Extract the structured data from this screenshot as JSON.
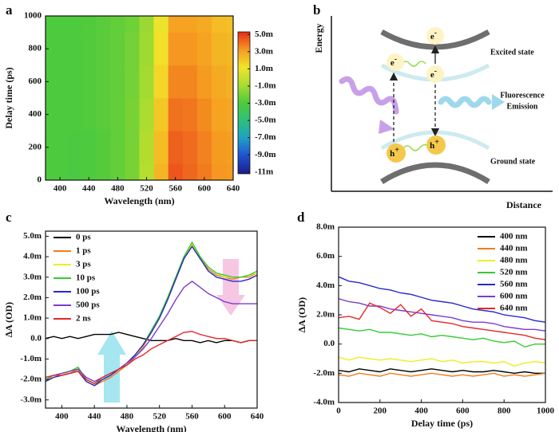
{
  "chart_data": [
    {
      "type": "heatmap",
      "panel_label": "a",
      "x_label": "Wavelength (nm)",
      "y_label": "Delay time (ps)",
      "x": [
        380,
        400,
        420,
        440,
        460,
        480,
        500,
        520,
        540,
        560,
        580,
        600,
        620,
        640
      ],
      "y": [
        0,
        200,
        400,
        600,
        800,
        1000
      ],
      "z": [
        [
          -3,
          -3,
          -3.2,
          -3,
          -2.8,
          -2.5,
          -2,
          -0.5,
          2.5,
          4.5,
          4.2,
          3.8,
          3.3,
          3.2
        ],
        [
          -3,
          -3,
          -3.1,
          -3,
          -2.8,
          -2.5,
          -2,
          -0.6,
          2.3,
          4.3,
          4.1,
          3.7,
          3.2,
          3.1
        ],
        [
          -3,
          -3,
          -3,
          -2.9,
          -2.7,
          -2.5,
          -2,
          -0.8,
          2.0,
          4.0,
          3.9,
          3.5,
          3.0,
          2.9
        ],
        [
          -3,
          -3,
          -3,
          -2.9,
          -2.7,
          -2.5,
          -2.1,
          -1.0,
          1.6,
          3.6,
          3.6,
          3.2,
          2.8,
          2.6
        ],
        [
          -3,
          -3,
          -3,
          -2.9,
          -2.7,
          -2.5,
          -2.1,
          -1.1,
          1.3,
          3.3,
          3.3,
          3.0,
          2.5,
          2.4
        ],
        [
          -3,
          -3,
          -3,
          -2.9,
          -2.7,
          -2.5,
          -2.2,
          -1.2,
          1.0,
          3.0,
          3.0,
          2.8,
          2.3,
          2.2
        ]
      ],
      "xlim": [
        380,
        640
      ],
      "xticks": [
        400,
        440,
        480,
        520,
        560,
        600,
        640
      ],
      "ylim": [
        0,
        1000
      ],
      "yticks": [
        0,
        200,
        400,
        600,
        800,
        1000
      ],
      "zlim": [
        -11.2,
        5.3
      ],
      "zticks": [
        {
          "value": 5,
          "label": "5.0m"
        },
        {
          "value": 3,
          "label": "3.0m"
        },
        {
          "value": 1,
          "label": "1.0m"
        },
        {
          "value": -1,
          "label": "-1.0m"
        },
        {
          "value": -3,
          "label": "-3.0m"
        },
        {
          "value": -5,
          "label": "-5.0m"
        },
        {
          "value": -7,
          "label": "-7.0m"
        },
        {
          "value": -9,
          "label": "-9.0m"
        },
        {
          "value": -11,
          "label": "-11m"
        }
      ],
      "colors": [
        "#1c1c8a",
        "#2050d0",
        "#1fa0c8",
        "#2ec07a",
        "#4fca3c",
        "#a8dc30",
        "#f2e52a",
        "#f59a20",
        "#e82a1a"
      ]
    },
    {
      "type": "line",
      "panel_label": "c",
      "x_label": "Wavelength (nm)",
      "y_label": "∆A (OD)",
      "legend": "upper left",
      "x": [
        380,
        390,
        400,
        410,
        420,
        430,
        440,
        450,
        460,
        470,
        480,
        490,
        500,
        510,
        520,
        530,
        540,
        550,
        560,
        570,
        580,
        590,
        600,
        610,
        620,
        630,
        640
      ],
      "series": [
        {
          "name": "0 ps",
          "color": "#000000",
          "values": [
            0.0,
            0.1,
            0.0,
            0.1,
            0.0,
            0.1,
            0.2,
            0.2,
            0.2,
            0.3,
            0.2,
            0.1,
            0.0,
            -0.1,
            -0.1,
            -0.1,
            0.0,
            -0.1,
            -0.1,
            -0.2,
            -0.1,
            -0.2,
            -0.1,
            -0.1,
            -0.2,
            -0.1,
            -0.1
          ]
        },
        {
          "name": "1 ps",
          "color": "#f07d1a",
          "values": [
            -2.0,
            -1.9,
            -1.8,
            -1.7,
            -1.5,
            -2.1,
            -2.3,
            -2.1,
            -1.9,
            -1.6,
            -1.3,
            -0.9,
            -0.4,
            0.3,
            1.0,
            1.9,
            2.9,
            3.9,
            4.6,
            3.9,
            3.4,
            3.1,
            3.0,
            2.9,
            3.0,
            3.0,
            3.2
          ]
        },
        {
          "name": "3 ps",
          "color": "#eeee22",
          "values": [
            -2.1,
            -1.9,
            -1.8,
            -1.6,
            -1.5,
            -2.0,
            -2.2,
            -2.0,
            -1.8,
            -1.5,
            -1.2,
            -0.9,
            -0.3,
            0.3,
            1.1,
            2.0,
            3.0,
            4.0,
            4.6,
            4.0,
            3.5,
            3.2,
            3.0,
            3.0,
            3.0,
            3.1,
            3.2
          ]
        },
        {
          "name": "10 ps",
          "color": "#33cc33",
          "values": [
            -2.0,
            -1.8,
            -1.7,
            -1.6,
            -1.4,
            -2.0,
            -2.2,
            -2.0,
            -1.8,
            -1.5,
            -1.2,
            -0.8,
            -0.3,
            0.4,
            1.1,
            2.0,
            3.0,
            4.0,
            4.7,
            4.0,
            3.5,
            3.2,
            3.1,
            3.0,
            3.0,
            3.1,
            3.3
          ]
        },
        {
          "name": "100 ps",
          "color": "#2828c8",
          "values": [
            -2.1,
            -1.9,
            -1.8,
            -1.7,
            -1.6,
            -2.1,
            -2.3,
            -2.0,
            -1.8,
            -1.5,
            -1.2,
            -0.8,
            -0.3,
            0.3,
            1.0,
            1.9,
            2.9,
            3.9,
            4.5,
            3.9,
            3.3,
            3.0,
            2.9,
            2.8,
            2.8,
            2.9,
            3.1
          ]
        },
        {
          "name": "500 ps",
          "color": "#7a3ccf",
          "values": [
            -1.9,
            -1.8,
            -1.7,
            -1.6,
            -1.5,
            -1.9,
            -2.1,
            -1.9,
            -1.7,
            -1.5,
            -1.2,
            -0.9,
            -0.5,
            0.0,
            0.6,
            1.2,
            1.9,
            2.5,
            2.8,
            2.5,
            2.2,
            2.0,
            1.8,
            1.7,
            1.7,
            1.7,
            1.7
          ]
        },
        {
          "name": "2 ns",
          "color": "#e6262a",
          "values": [
            -1.9,
            -1.8,
            -1.8,
            -1.7,
            -1.6,
            -2.0,
            -2.2,
            -1.9,
            -1.7,
            -1.5,
            -1.3,
            -1.0,
            -0.8,
            -0.5,
            -0.3,
            -0.1,
            0.1,
            0.3,
            0.35,
            0.2,
            0.1,
            0.0,
            0.0,
            -0.1,
            -0.2,
            -0.1,
            -0.1
          ]
        }
      ],
      "xlim": [
        380,
        640
      ],
      "xticks": [
        400,
        440,
        480,
        520,
        560,
        600,
        640
      ],
      "ylim": [
        -3.4,
        5.25
      ],
      "yticks": [
        {
          "value": 5,
          "label": "5.0m"
        },
        {
          "value": 4,
          "label": "4.0m"
        },
        {
          "value": 3,
          "label": "3.0m"
        },
        {
          "value": 2,
          "label": "2.0m"
        },
        {
          "value": 1,
          "label": "1.0m"
        },
        {
          "value": 0,
          "label": "0.0"
        },
        {
          "value": -1,
          "label": "-1.0m"
        },
        {
          "value": -2,
          "label": "-2.0m"
        },
        {
          "value": -3,
          "label": "-3.0m"
        }
      ]
    },
    {
      "type": "line",
      "panel_label": "d",
      "x_label": "Delay time (ps)",
      "y_label": "∆A (OD)",
      "legend": "upper right",
      "x": [
        0,
        50,
        100,
        150,
        200,
        250,
        300,
        350,
        400,
        450,
        500,
        550,
        600,
        650,
        700,
        750,
        800,
        850,
        900,
        950,
        1000
      ],
      "series": [
        {
          "name": "400 nm",
          "color": "#000000",
          "values": [
            -1.8,
            -1.9,
            -1.7,
            -1.8,
            -1.9,
            -1.7,
            -1.8,
            -1.9,
            -1.8,
            -1.7,
            -1.8,
            -1.9,
            -1.8,
            -1.9,
            -1.9,
            -1.8,
            -1.9,
            -2.0,
            -1.9,
            -2.0,
            -2.0
          ]
        },
        {
          "name": "440 nm",
          "color": "#f07d1a",
          "values": [
            -2.1,
            -2.2,
            -2.0,
            -2.1,
            -2.2,
            -2.0,
            -2.1,
            -2.2,
            -2.1,
            -2.0,
            -2.1,
            -2.2,
            -2.1,
            -2.2,
            -2.1,
            -2.0,
            -2.2,
            -2.1,
            -2.2,
            -2.1,
            -2.0
          ]
        },
        {
          "name": "480 nm",
          "color": "#eeee22",
          "values": [
            -0.9,
            -1.1,
            -0.9,
            -1.0,
            -1.1,
            -1.0,
            -1.1,
            -1.2,
            -1.1,
            -1.0,
            -1.2,
            -1.1,
            -1.3,
            -1.2,
            -1.2,
            -1.3,
            -1.2,
            -1.5,
            -1.3,
            -1.2,
            -1.3
          ]
        },
        {
          "name": "520 nm",
          "color": "#33cc33",
          "values": [
            1.1,
            1.0,
            0.9,
            1.0,
            0.8,
            0.8,
            0.7,
            0.6,
            0.7,
            0.5,
            0.6,
            0.5,
            0.4,
            0.3,
            0.4,
            0.2,
            0.1,
            0.2,
            -0.2,
            0.0,
            0.0
          ]
        },
        {
          "name": "560 nm",
          "color": "#2828c8",
          "values": [
            4.6,
            4.3,
            4.2,
            4.0,
            3.8,
            3.7,
            3.5,
            3.4,
            3.2,
            3.0,
            2.9,
            2.8,
            2.6,
            2.4,
            2.3,
            2.2,
            2.0,
            1.9,
            1.8,
            1.6,
            1.5
          ]
        },
        {
          "name": "600 nm",
          "color": "#7a3ccf",
          "values": [
            3.1,
            2.9,
            2.8,
            2.6,
            2.6,
            2.4,
            2.3,
            2.2,
            2.1,
            2.0,
            1.9,
            1.8,
            1.6,
            1.5,
            1.5,
            1.4,
            1.2,
            1.1,
            1.0,
            1.0,
            0.9
          ]
        },
        {
          "name": "640 nm",
          "color": "#e6262a",
          "values": [
            1.8,
            1.9,
            1.7,
            2.8,
            2.5,
            2.1,
            2.7,
            1.9,
            2.4,
            1.6,
            1.5,
            1.4,
            1.2,
            1.1,
            1.0,
            0.9,
            0.8,
            0.7,
            0.6,
            0.4,
            0.3
          ]
        }
      ],
      "xlim": [
        0,
        1000
      ],
      "xticks": [
        0,
        200,
        400,
        600,
        800,
        1000
      ],
      "ylim": [
        -4,
        8
      ],
      "yticks": [
        {
          "value": 8,
          "label": "8.0m"
        },
        {
          "value": 6,
          "label": "6.0m"
        },
        {
          "value": 4,
          "label": "4.0m"
        },
        {
          "value": 2,
          "label": "2.0m"
        },
        {
          "value": 0,
          "label": "0.0"
        },
        {
          "value": -2,
          "label": "-2.0m"
        },
        {
          "value": -4,
          "label": "-4.0m"
        }
      ]
    }
  ],
  "diagram": {
    "panel_label": "b",
    "y_axis": "Energy",
    "x_axis": "Distance",
    "states": [
      "Excited state",
      "Ground state"
    ],
    "emission": [
      "Fluorescence",
      "Emission"
    ],
    "carriers": [
      {
        "symbol": "e",
        "charge": "-"
      },
      {
        "symbol": "e",
        "charge": "-"
      },
      {
        "symbol": "e",
        "charge": "-"
      },
      {
        "symbol": "h",
        "charge": "+"
      },
      {
        "symbol": "h",
        "charge": "+"
      }
    ]
  }
}
